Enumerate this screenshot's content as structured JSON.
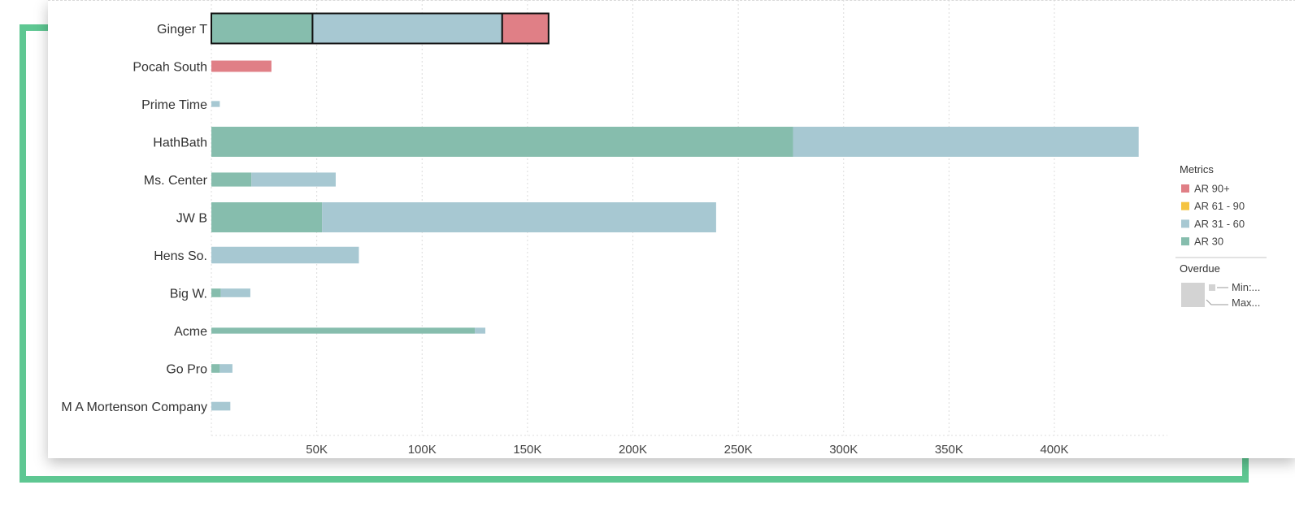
{
  "chart_data": {
    "type": "bar",
    "orientation": "horizontal",
    "stacked": true,
    "categories": [
      "Ginger T",
      "Pocah South",
      "Prime Time",
      "HathBath",
      "Ms. Center",
      "JW B",
      "Hens So.",
      "Big W.",
      "Acme",
      "Go Pro",
      "M A Mortenson Company"
    ],
    "series": [
      {
        "name": "AR 30",
        "color": "#86bdad",
        "values": [
          48000,
          0,
          0,
          276000,
          19000,
          52500,
          0,
          4500,
          125000,
          4000,
          0
        ]
      },
      {
        "name": "AR 31 - 60",
        "color": "#a7c8d2",
        "values": [
          90000,
          0,
          4000,
          164000,
          40000,
          187000,
          70000,
          14000,
          5000,
          6000,
          9000
        ]
      },
      {
        "name": "AR 61 - 90",
        "color": "#f5c442",
        "values": [
          0,
          0,
          0,
          0,
          0,
          0,
          0,
          0,
          0,
          0,
          0
        ]
      },
      {
        "name": "AR 90+",
        "color": "#e07f86",
        "values": [
          22000,
          28500,
          0,
          0,
          0,
          0,
          0,
          0,
          0,
          0,
          0
        ]
      }
    ],
    "overdue_size_level": [
      1.0,
      0.3,
      0.1,
      1.0,
      0.4,
      1.0,
      0.5,
      0.2,
      0.1,
      0.2,
      0.2
    ],
    "xlim": [
      0,
      455000
    ],
    "xticks": [
      50000,
      100000,
      150000,
      200000,
      250000,
      300000,
      350000,
      400000
    ],
    "xtick_labels": [
      "50K",
      "100K",
      "150K",
      "200K",
      "250K",
      "300K",
      "350K",
      "400K"
    ],
    "grid": "vertical dotted",
    "highlighted_category": "Ginger T",
    "legend": {
      "position": "right",
      "title": "Metrics",
      "items": [
        {
          "label": "AR 90+",
          "color": "#e07f86"
        },
        {
          "label": "AR 61 - 90",
          "color": "#f5c442"
        },
        {
          "label": "AR 31 - 60",
          "color": "#a7c8d2"
        },
        {
          "label": "AR 30",
          "color": "#86bdad"
        }
      ],
      "size_title": "Overdue",
      "size_min_label": "Min:...",
      "size_max_label": "Max..."
    }
  }
}
